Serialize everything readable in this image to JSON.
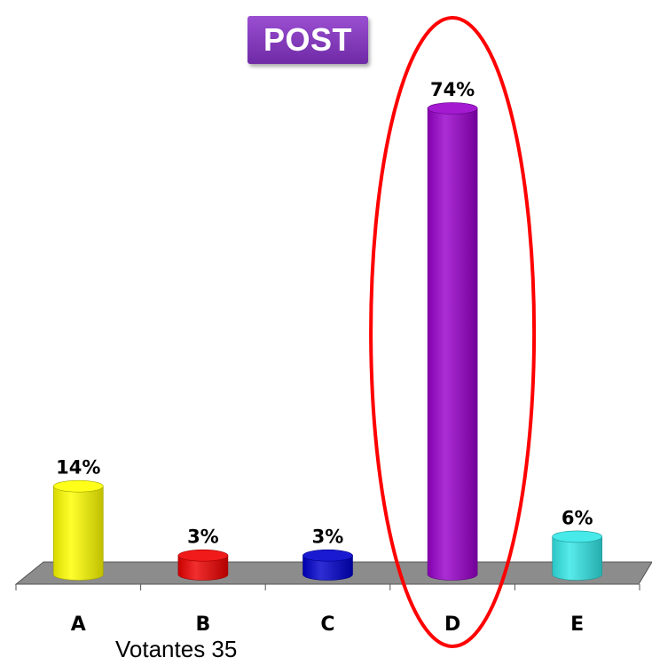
{
  "title": "POST",
  "caption": "Votantes 35",
  "chart_data": {
    "type": "bar",
    "categories": [
      "A",
      "B",
      "C",
      "D",
      "E"
    ],
    "values": [
      14,
      3,
      3,
      74,
      6
    ],
    "value_labels": [
      "14%",
      "3%",
      "3%",
      "74%",
      "6%"
    ],
    "title": "POST",
    "xlabel": "",
    "ylabel": "",
    "ylim": [
      0,
      74
    ],
    "grid": false,
    "colors": [
      "#ffff00",
      "#ee0000",
      "#0000cc",
      "#9900cc",
      "#33e6e6"
    ],
    "highlight": {
      "category": "D",
      "shape": "ellipse",
      "color": "#ff0000"
    }
  }
}
